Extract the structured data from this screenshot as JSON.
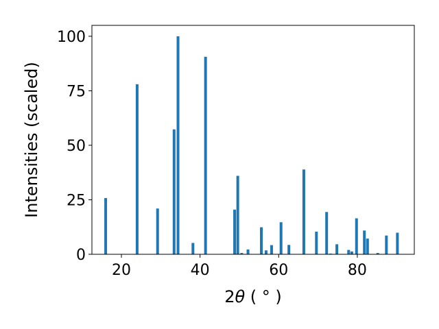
{
  "chart_data": {
    "type": "bar",
    "xlabel_main": "2",
    "xlabel_symbol": "θ",
    "xlabel_unit": " ( ° )",
    "ylabel": "Intensities (scaled)",
    "xlim": [
      12.5,
      94.5
    ],
    "ylim": [
      0,
      105
    ],
    "xticks": [
      20,
      40,
      60,
      80
    ],
    "yticks": [
      0,
      25,
      50,
      75,
      100
    ],
    "bar_width": 0.7,
    "color": "#1f77b4",
    "grid": false,
    "series": [
      {
        "x": [
          16.0,
          24.0,
          29.2,
          33.4,
          34.4,
          38.2,
          41.4,
          48.8,
          49.6,
          50.6,
          52.2,
          55.6,
          56.8,
          58.2,
          60.6,
          62.6,
          66.4,
          69.6,
          72.2,
          73.2,
          74.8,
          77.8,
          78.6,
          79.8,
          81.8,
          82.6,
          85.2,
          87.4,
          90.2
        ],
        "y": [
          25.8,
          78.0,
          21.0,
          57.3,
          100.0,
          5.2,
          90.6,
          20.5,
          36.0,
          0.6,
          2.2,
          12.4,
          1.8,
          4.2,
          14.7,
          4.3,
          38.9,
          10.4,
          19.4,
          0.3,
          4.6,
          2.0,
          1.3,
          16.5,
          10.9,
          7.2,
          0.6,
          8.6,
          9.9
        ]
      }
    ]
  }
}
